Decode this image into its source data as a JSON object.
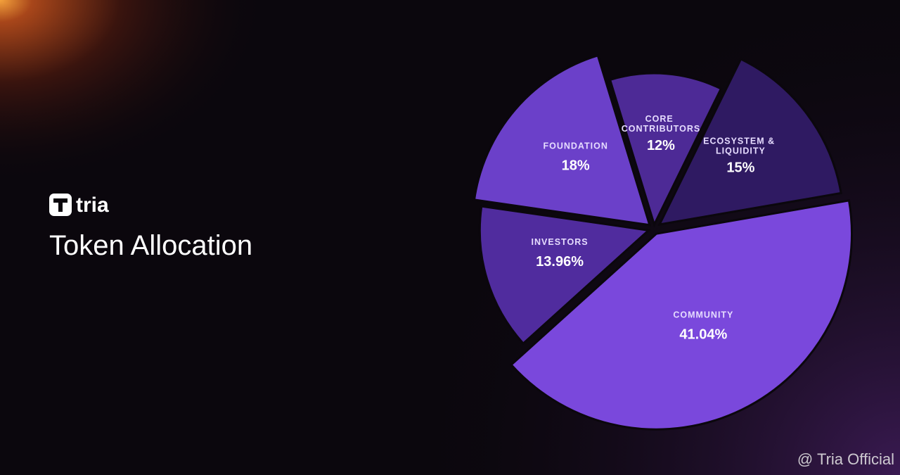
{
  "brand": "tria",
  "chart_data": {
    "type": "pie",
    "title": "Token Allocation",
    "categories": [
      "CORE CONTRIBUTORS",
      "ECOSYSTEM & LIQUIDITY",
      "COMMUNITY",
      "INVESTORS",
      "FOUNDATION"
    ],
    "values": [
      12,
      15,
      41.04,
      13.96,
      18
    ],
    "value_labels": [
      "12%",
      "15%",
      "41.04%",
      "13.96%",
      "18%"
    ],
    "colors": [
      "#4d2a96",
      "#2f1a62",
      "#7a48dc",
      "#502c9e",
      "#6b40c9"
    ]
  },
  "watermark": "@ Tria Official"
}
